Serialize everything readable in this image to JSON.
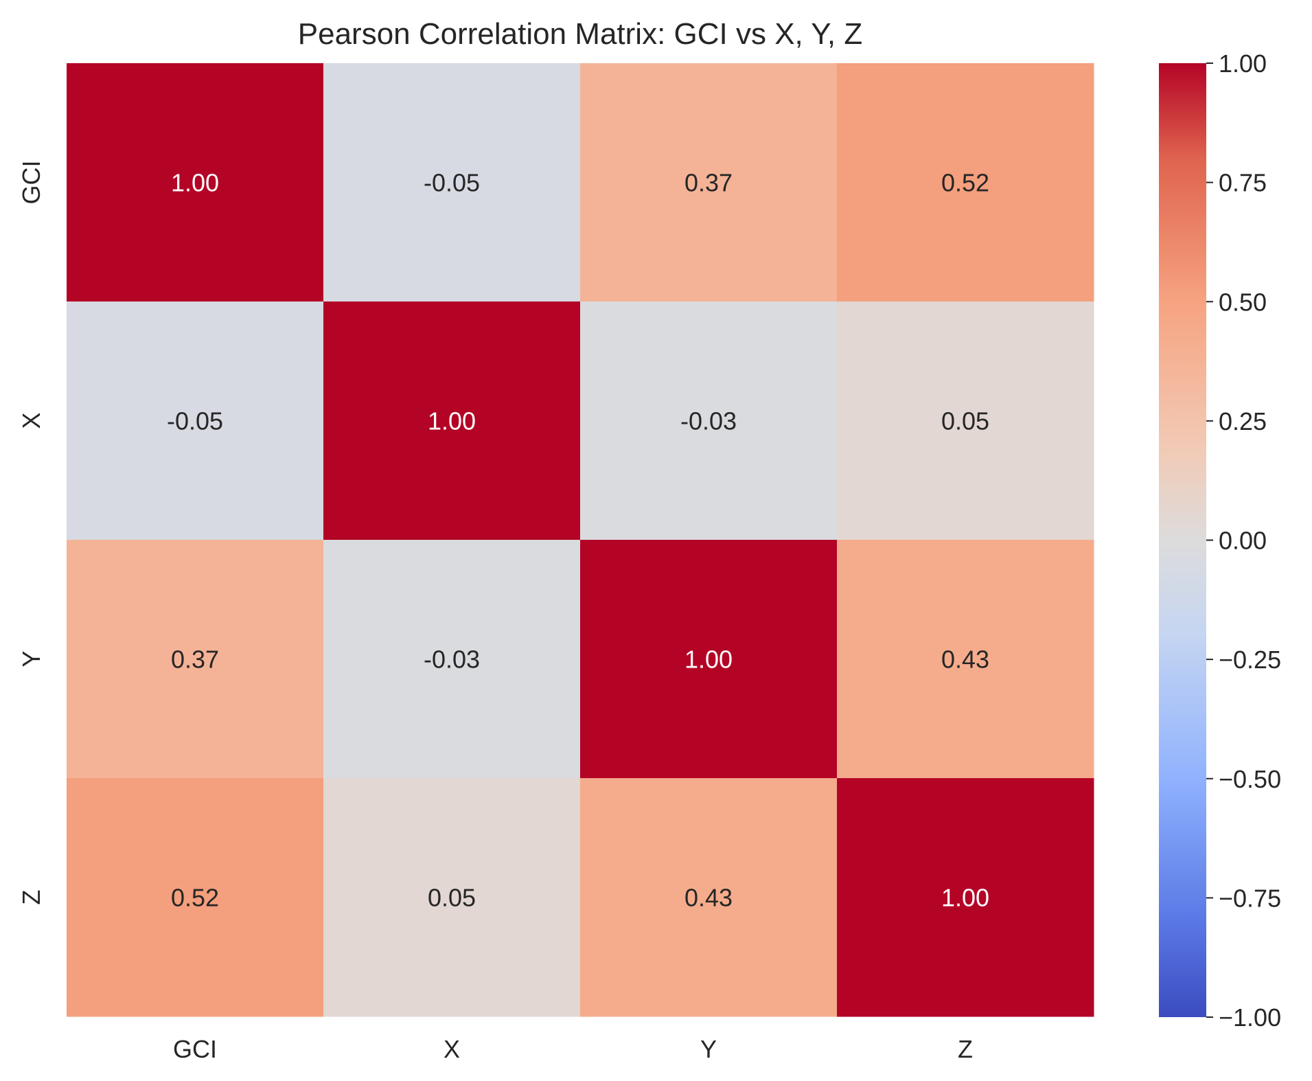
{
  "chart_data": {
    "type": "heatmap",
    "title": "Pearson Correlation Matrix: GCI vs X, Y, Z",
    "x_labels": [
      "GCI",
      "X",
      "Y",
      "Z"
    ],
    "y_labels": [
      "GCI",
      "X",
      "Y",
      "Z"
    ],
    "values": [
      [
        1.0,
        -0.05,
        0.37,
        0.52
      ],
      [
        -0.05,
        1.0,
        -0.03,
        0.05
      ],
      [
        0.37,
        -0.03,
        1.0,
        0.43
      ],
      [
        0.52,
        0.05,
        0.43,
        1.0
      ]
    ],
    "cell_labels": [
      [
        "1.00",
        "-0.05",
        "0.37",
        "0.52"
      ],
      [
        "-0.05",
        "1.00",
        "-0.03",
        "0.05"
      ],
      [
        "0.37",
        "-0.03",
        "1.00",
        "0.43"
      ],
      [
        "0.52",
        "0.05",
        "0.43",
        "1.00"
      ]
    ],
    "colorbar": {
      "range": [
        -1.0,
        1.0
      ],
      "ticks": [
        1.0,
        0.75,
        0.5,
        0.25,
        0.0,
        -0.25,
        -0.5,
        -0.75,
        -1.0
      ],
      "tick_labels": [
        "1.00",
        "0.75",
        "0.50",
        "0.25",
        "0.00",
        "−0.25",
        "−0.50",
        "−0.75",
        "−1.00"
      ]
    },
    "colormap": "coolwarm",
    "grid": false
  }
}
